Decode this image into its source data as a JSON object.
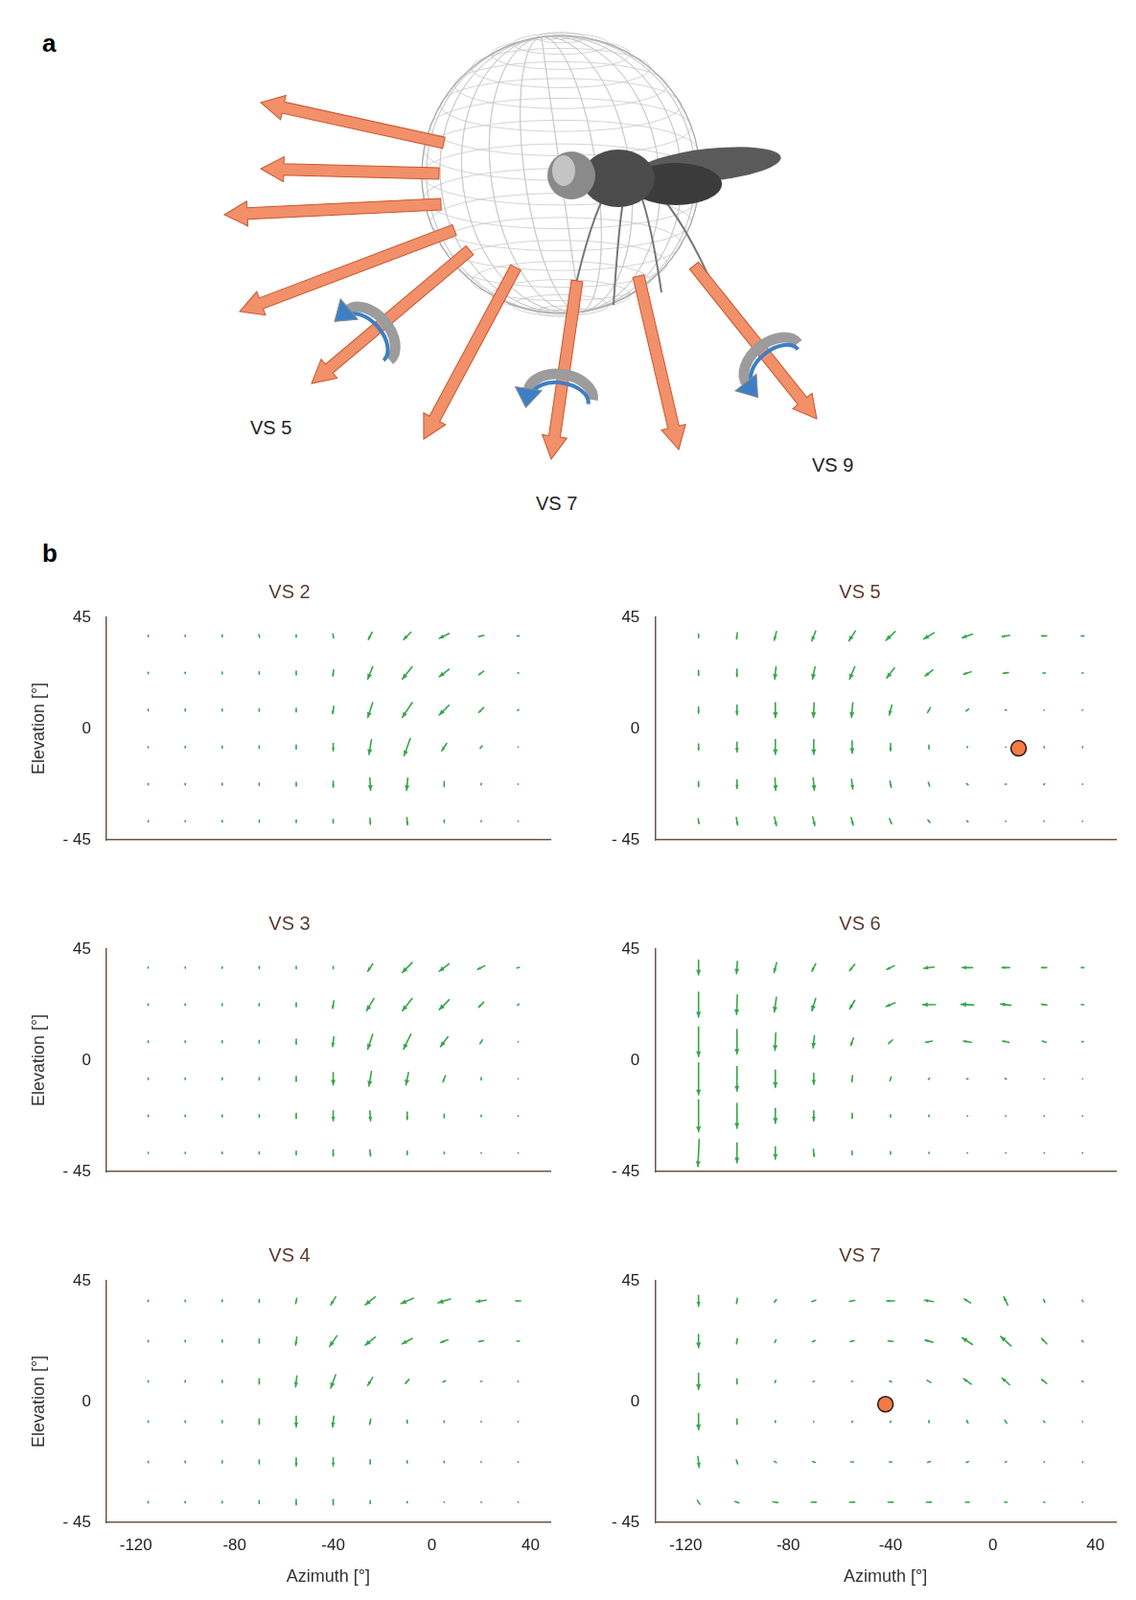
{
  "panels": {
    "a": {
      "letter": "a",
      "labels": [
        "VS 5",
        "VS 7",
        "VS 9"
      ]
    },
    "b": {
      "letter": "b"
    }
  },
  "chart_data": [
    {
      "type": "quiver",
      "title": "VS 2",
      "color": "#35a64a",
      "tick_labels": "y",
      "ylabel": "Elevation [°]",
      "xlim": [
        -132,
        48
      ],
      "ylim": [
        -45,
        45
      ],
      "yticks": [
        {
          "value": -45,
          "label": "- 45"
        },
        0,
        45
      ],
      "x": [
        -115,
        -100,
        -85,
        -70,
        -55,
        -40,
        -25,
        -10,
        5,
        20,
        35
      ],
      "y": [
        37.5,
        22.5,
        7.5,
        -7.5,
        -22.5,
        -37.5
      ],
      "u": [
        [
          0,
          0,
          0,
          0.3,
          0,
          0.3,
          -1.5,
          -3,
          -4,
          -2,
          -0.8
        ],
        [
          0,
          0,
          0,
          0,
          0,
          -0.3,
          -2,
          -4,
          -4,
          -2,
          -0.5
        ],
        [
          0,
          0,
          0,
          0,
          0,
          -0.5,
          -2,
          -4,
          -4,
          -2,
          -0.5
        ],
        [
          0,
          0,
          0,
          0,
          0,
          0,
          -1,
          -2.5,
          -2,
          -0.8,
          0
        ],
        [
          0,
          0,
          0,
          0,
          0,
          0,
          0.3,
          -0.5,
          0,
          0,
          0
        ],
        [
          0,
          0,
          0,
          0,
          0,
          0,
          0.2,
          0.3,
          0,
          0,
          0
        ]
      ],
      "v": [
        [
          -0.6,
          -0.6,
          -0.8,
          -1,
          -1,
          -1.5,
          -3,
          -3,
          -2,
          -0.5,
          0
        ],
        [
          -0.6,
          -0.6,
          -0.8,
          -1,
          -1.5,
          -2.5,
          -5,
          -5,
          -3,
          -1.5,
          0
        ],
        [
          -0.6,
          -0.8,
          -0.8,
          -1,
          -1.5,
          -3,
          -6,
          -6,
          -4,
          -2,
          -0.3
        ],
        [
          -0.5,
          -0.6,
          -0.8,
          -1,
          -1.5,
          -3,
          -6,
          -7,
          -3,
          -1,
          0
        ],
        [
          -0.5,
          -0.6,
          -0.8,
          -1,
          -1.5,
          -2.5,
          -5,
          -5,
          -2,
          -0.6,
          0
        ],
        [
          -0.5,
          -0.5,
          -0.6,
          -0.8,
          -1,
          -1.5,
          -2.5,
          -3,
          -1,
          -0.5,
          0
        ]
      ]
    },
    {
      "type": "quiver",
      "title": "VS 3",
      "color": "#35a64a",
      "tick_labels": "y",
      "ylabel": "Elevation [°]",
      "xlim": [
        -132,
        48
      ],
      "ylim": [
        -45,
        45
      ],
      "yticks": [
        {
          "value": -45,
          "label": "- 45"
        },
        0,
        45
      ],
      "x": [
        -115,
        -100,
        -85,
        -70,
        -55,
        -40,
        -25,
        -10,
        5,
        20,
        35
      ],
      "y": [
        37.5,
        22.5,
        7.5,
        -7.5,
        -22.5,
        -37.5
      ],
      "u": [
        [
          0,
          0,
          0,
          0,
          0,
          0,
          -2,
          -4,
          -4,
          -3,
          -1
        ],
        [
          0,
          0,
          0,
          0,
          0,
          -0.5,
          -3,
          -4,
          -4,
          -2,
          -0.5
        ],
        [
          0,
          0,
          0,
          0,
          0,
          -0.5,
          -2,
          -3,
          -3,
          -1,
          0
        ],
        [
          0,
          0,
          0,
          0,
          0,
          0,
          -1,
          -1,
          -1,
          0,
          0
        ],
        [
          0,
          0,
          0,
          0,
          0,
          0,
          0.3,
          0,
          0,
          0,
          0
        ],
        [
          0,
          0,
          0,
          0,
          0,
          0,
          0.3,
          0,
          0,
          0,
          0
        ]
      ],
      "v": [
        [
          -0.5,
          -0.5,
          -0.6,
          -0.8,
          -1,
          -1,
          -3,
          -4,
          -3,
          -1.5,
          -0.3
        ],
        [
          -0.5,
          -0.6,
          -0.8,
          -1,
          -1.5,
          -3,
          -5,
          -5,
          -4,
          -2,
          -0.5
        ],
        [
          -0.6,
          -0.6,
          -0.8,
          -1,
          -2,
          -4,
          -6,
          -6,
          -4,
          -1.5,
          -0.3
        ],
        [
          -0.6,
          -0.6,
          -0.8,
          -1,
          -2,
          -5,
          -6,
          -5,
          -2.5,
          -1,
          0
        ],
        [
          -0.5,
          -0.6,
          -0.8,
          -1,
          -2,
          -4,
          -4,
          -3,
          -1.5,
          -0.5,
          0
        ],
        [
          -0.5,
          -0.5,
          -0.6,
          -0.8,
          -1.5,
          -2.5,
          -2.5,
          -1.5,
          -0.6,
          0,
          0
        ]
      ]
    },
    {
      "type": "quiver",
      "title": "VS 4",
      "color": "#35a64a",
      "ylabel": "Elevation [°]",
      "xlabel": "Azimuth [°]",
      "xlim": [
        -132,
        48
      ],
      "ylim": [
        -45,
        45
      ],
      "xticks": [
        -120,
        -80,
        -40,
        0,
        40
      ],
      "yticks": [
        {
          "value": -45,
          "label": "- 45"
        },
        0,
        45
      ],
      "x": [
        -115,
        -100,
        -85,
        -70,
        -55,
        -40,
        -25,
        -10,
        5,
        20,
        35
      ],
      "y": [
        37.5,
        22.5,
        7.5,
        -7.5,
        -22.5,
        -37.5
      ],
      "u": [
        [
          0,
          0,
          0,
          0,
          -0.5,
          -2,
          -4,
          -5,
          -5,
          -4,
          -2
        ],
        [
          0,
          0,
          0,
          0,
          -0.5,
          -3,
          -4,
          -4,
          -3,
          -2,
          -1
        ],
        [
          0,
          0,
          0,
          0,
          -0.5,
          -2,
          -2,
          -1.5,
          -1,
          -0.5,
          0
        ],
        [
          0,
          0,
          0,
          0,
          0,
          -0.5,
          -0.5,
          0,
          0,
          0,
          0
        ],
        [
          0,
          0,
          0,
          0,
          0,
          0,
          0,
          0,
          0,
          0,
          0
        ],
        [
          0,
          0,
          0,
          0,
          0,
          0,
          0,
          0,
          0,
          0,
          0
        ]
      ],
      "v": [
        [
          -0.5,
          -0.5,
          -0.6,
          -1,
          -2,
          -3,
          -3,
          -2,
          -1.5,
          -0.5,
          0
        ],
        [
          -0.5,
          -0.6,
          -0.8,
          -1.5,
          -3,
          -4,
          -3,
          -2,
          -1,
          -0.3,
          0
        ],
        [
          -0.5,
          -0.6,
          -0.8,
          -2,
          -4,
          -5,
          -3,
          -1.5,
          -0.5,
          0,
          0
        ],
        [
          -0.5,
          -0.6,
          -0.8,
          -2,
          -4,
          -4,
          -2,
          -1,
          -0.5,
          0,
          0
        ],
        [
          -0.5,
          -0.6,
          -0.8,
          -1.5,
          -3,
          -3,
          -1.5,
          -0.8,
          -0.5,
          0,
          0
        ],
        [
          -0.5,
          -0.5,
          -0.6,
          -1,
          -2,
          -2,
          -1,
          -0.5,
          0,
          0,
          0
        ]
      ]
    },
    {
      "type": "quiver",
      "title": "VS 5",
      "color": "#35a64a",
      "tick_labels": "y",
      "xlim": [
        -132,
        48
      ],
      "ylim": [
        -45,
        45
      ],
      "yticks": [
        {
          "value": -45,
          "label": "- 45"
        },
        0,
        45
      ],
      "x": [
        -115,
        -100,
        -85,
        -70,
        -55,
        -40,
        -25,
        -10,
        5,
        20,
        35
      ],
      "y": [
        37.5,
        22.5,
        7.5,
        -7.5,
        -22.5,
        -37.5
      ],
      "u": [
        [
          0,
          -0.3,
          -0.8,
          -1.5,
          -2.5,
          -3.5,
          -4,
          -4,
          -3,
          -2,
          -1
        ],
        [
          0,
          0,
          -0.5,
          -1,
          -2,
          -3,
          -3,
          -3,
          -2,
          -1,
          -0.5
        ],
        [
          0,
          0,
          0,
          -0.3,
          -0.5,
          -1,
          -1,
          -1,
          -0.5,
          0,
          0
        ],
        [
          0,
          0,
          0,
          0,
          0,
          0,
          0,
          0,
          0,
          0,
          0
        ],
        [
          0,
          0,
          0.3,
          0.5,
          0.5,
          0.5,
          0.5,
          0.5,
          0.5,
          0.3,
          0
        ],
        [
          0.3,
          0.5,
          0.8,
          0.8,
          0.8,
          0.8,
          0.8,
          0.5,
          0.3,
          0.3,
          0
        ]
      ],
      "v": [
        [
          -1.5,
          -2.5,
          -3.5,
          -4,
          -4,
          -3.5,
          -2.5,
          -1.5,
          -0.5,
          0,
          0
        ],
        [
          -2,
          -3,
          -5,
          -5,
          -5,
          -4,
          -2.5,
          -1,
          -0.3,
          0,
          0
        ],
        [
          -2.5,
          -4,
          -6,
          -6,
          -6,
          -4,
          -2,
          -0.8,
          0,
          0.3,
          0.3
        ],
        [
          -2.5,
          -4,
          -6,
          -6,
          -5,
          -3,
          -1.5,
          -0.5,
          0,
          0.5,
          0.5
        ],
        [
          -2,
          -3.5,
          -5,
          -5,
          -4,
          -2.5,
          -1.5,
          -0.5,
          0,
          0.3,
          0.3
        ],
        [
          -2,
          -3,
          -3.5,
          -3.5,
          -3,
          -2,
          -1,
          -0.5,
          0,
          0,
          0
        ]
      ],
      "dot": {
        "x": 10,
        "y": -8,
        "color": "#f27b45"
      }
    },
    {
      "type": "quiver",
      "title": "VS 6",
      "color": "#35a64a",
      "tick_labels": "y",
      "xlim": [
        -132,
        48
      ],
      "ylim": [
        -45,
        45
      ],
      "yticks": [
        {
          "value": -45,
          "label": "- 45"
        },
        0,
        45
      ],
      "x": [
        -115,
        -100,
        -85,
        -70,
        -55,
        -40,
        -25,
        -10,
        5,
        20,
        35
      ],
      "y": [
        37.5,
        22.5,
        7.5,
        -7.5,
        -22.5,
        -37.5
      ],
      "u": [
        [
          0,
          -0.3,
          -1,
          -1.5,
          -2,
          -3,
          -4,
          -4,
          -3,
          -2,
          -1
        ],
        [
          0,
          -0.3,
          -0.8,
          -1.5,
          -2,
          -3.5,
          -5,
          -5,
          -4,
          -2,
          -1
        ],
        [
          0,
          0,
          -0.3,
          -0.5,
          -1,
          -1.5,
          -2.5,
          -3,
          -2.5,
          -1.5,
          -0.5
        ],
        [
          0,
          0,
          0,
          0,
          -0.3,
          -0.5,
          -0.5,
          -0.5,
          -0.5,
          0,
          0
        ],
        [
          0,
          0,
          0,
          0,
          0,
          0,
          0,
          0,
          0,
          0,
          0
        ],
        [
          -0.5,
          0,
          0,
          0.3,
          0,
          0,
          0,
          0,
          0,
          0,
          0
        ]
      ],
      "v": [
        [
          -6,
          -5,
          -4,
          -3,
          -2.5,
          -1.5,
          -0.5,
          0,
          0,
          0,
          0
        ],
        [
          -10,
          -8,
          -6,
          -5,
          -3.5,
          -1.5,
          0,
          0.3,
          0.5,
          0.3,
          0
        ],
        [
          -12,
          -10,
          -7,
          -5,
          -3,
          -1.5,
          -0.5,
          0.5,
          0.5,
          0.5,
          0
        ],
        [
          -13,
          -10,
          -7,
          -4.5,
          -2.5,
          -1.5,
          -0.5,
          0,
          0.3,
          0.3,
          0
        ],
        [
          -13,
          -10,
          -6,
          -4,
          -2,
          -1,
          -0.5,
          -0.3,
          0,
          0,
          0
        ],
        [
          -11,
          -8,
          -5,
          -3,
          -1.5,
          -1,
          -0.5,
          0,
          0,
          0,
          0
        ]
      ]
    },
    {
      "type": "quiver",
      "title": "VS 7",
      "color": "#35a64a",
      "xlabel": "Azimuth [°]",
      "xlim": [
        -132,
        48
      ],
      "ylim": [
        -45,
        45
      ],
      "xticks": [
        -120,
        -80,
        -40,
        0,
        40
      ],
      "yticks": [
        {
          "value": -45,
          "label": "- 45"
        },
        0,
        45
      ],
      "x": [
        -115,
        -100,
        -85,
        -70,
        -55,
        -40,
        -25,
        -10,
        5,
        20,
        35
      ],
      "y": [
        37.5,
        22.5,
        7.5,
        -7.5,
        -22.5,
        -37.5
      ],
      "u": [
        [
          0,
          -0.3,
          -0.8,
          -1.5,
          -2,
          -3,
          -3.5,
          -2.5,
          -1.5,
          -0.5,
          -0.3
        ],
        [
          0,
          -0.3,
          -0.5,
          -1,
          -1.5,
          -2,
          -3,
          -4,
          -4,
          -2,
          -0.5
        ],
        [
          0,
          0,
          -0.3,
          -0.5,
          -0.5,
          -0.8,
          -1.5,
          -3,
          -3,
          -2,
          -0.5
        ],
        [
          0,
          0,
          0,
          0.3,
          0.3,
          0.3,
          0,
          -0.5,
          -0.8,
          -0.5,
          0
        ],
        [
          0.5,
          0.5,
          0.8,
          1,
          1,
          1,
          1,
          0.8,
          0.5,
          0.3,
          0
        ],
        [
          1,
          1.5,
          2,
          2,
          2,
          2,
          2,
          1.5,
          1,
          0.5,
          0.3
        ]
      ],
      "v": [
        [
          -4,
          -2,
          -1,
          -0.5,
          -0.3,
          0,
          0.5,
          1.5,
          3,
          1,
          0.5
        ],
        [
          -5,
          -2,
          -1,
          -0.5,
          -0.3,
          0.2,
          0.8,
          2.5,
          3.5,
          2,
          0.5
        ],
        [
          -6,
          -2,
          -0.8,
          -0.3,
          0,
          0.3,
          0.8,
          2,
          2.5,
          1.5,
          0.3
        ],
        [
          -6,
          -2,
          -0.6,
          0,
          0.3,
          0.5,
          0.8,
          1,
          1.2,
          0.5,
          0
        ],
        [
          -4,
          -1.5,
          -0.5,
          -0.3,
          0,
          0,
          0.3,
          0.3,
          0.3,
          0,
          0
        ],
        [
          -1.5,
          -0.5,
          -0.3,
          0,
          0,
          0,
          0,
          0,
          0,
          0,
          0
        ]
      ],
      "dot": {
        "x": -42,
        "y": -1,
        "color": "#f27b45"
      }
    }
  ]
}
